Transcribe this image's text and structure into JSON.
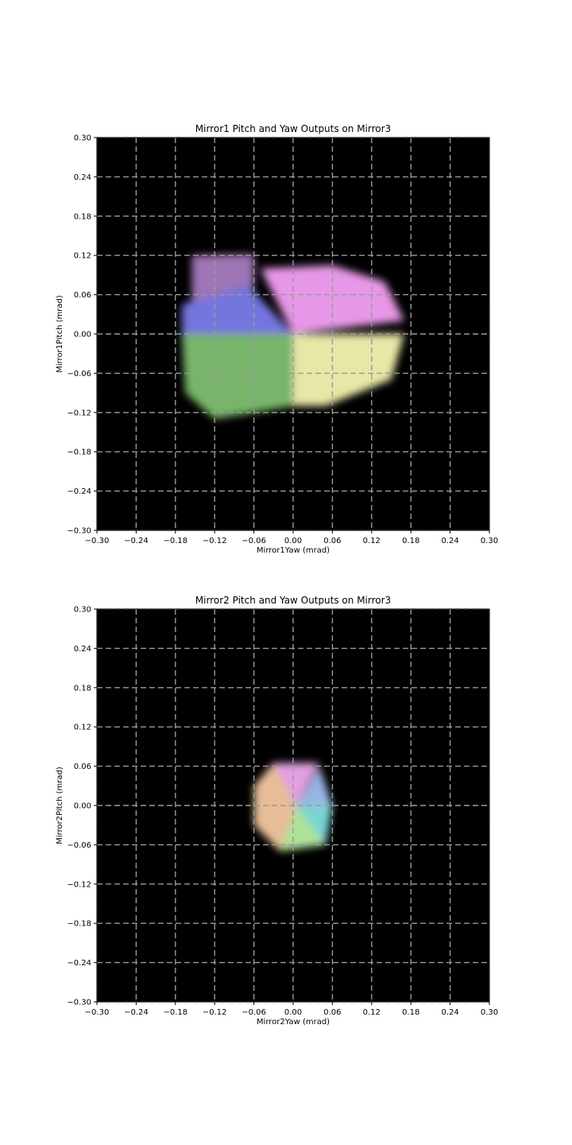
{
  "chart_data": [
    {
      "type": "heatmap",
      "title": "Mirror1 Pitch and Yaw Outputs on Mirror3",
      "xlabel": "Mirror1Yaw (mrad)",
      "ylabel": "Mirror1Pitch (mrad)",
      "xlim": [
        -0.3,
        0.3
      ],
      "ylim": [
        -0.3,
        0.3
      ],
      "xticks": [
        "−0.30",
        "−0.24",
        "−0.18",
        "−0.12",
        "−0.06",
        "0.00",
        "0.06",
        "0.12",
        "0.18",
        "0.24",
        "0.30"
      ],
      "yticks": [
        "0.30",
        "0.24",
        "0.18",
        "0.12",
        "0.06",
        "0.00",
        "−0.06",
        "−0.12",
        "−0.18",
        "−0.24",
        "−0.30"
      ],
      "grid": true,
      "background": "#000000",
      "colormap": "hue by angle around origin",
      "regions": [
        {
          "hue": "purple",
          "color": "#a77bbf",
          "points": [
            [
              -0.155,
              0.12
            ],
            [
              -0.06,
              0.122
            ],
            [
              -0.06,
              0.07
            ],
            [
              -0.155,
              0.05
            ]
          ]
        },
        {
          "hue": "blue",
          "color": "#7b7bea",
          "points": [
            [
              -0.17,
              0.045
            ],
            [
              -0.07,
              0.075
            ],
            [
              0.0,
              0.0
            ],
            [
              -0.17,
              -0.01
            ]
          ]
        },
        {
          "hue": "green",
          "color": "#7fbf6f",
          "points": [
            [
              -0.17,
              0.0
            ],
            [
              0.0,
              0.0
            ],
            [
              0.0,
              -0.11
            ],
            [
              -0.12,
              -0.13
            ],
            [
              -0.165,
              -0.09
            ]
          ]
        },
        {
          "hue": "pink",
          "color": "#f4a0f4",
          "points": [
            [
              -0.05,
              0.1
            ],
            [
              0.06,
              0.105
            ],
            [
              0.14,
              0.08
            ],
            [
              0.17,
              0.02
            ],
            [
              0.0,
              0.0
            ]
          ]
        },
        {
          "hue": "yellow",
          "color": "#f4f4b0",
          "points": [
            [
              0.0,
              0.0
            ],
            [
              0.17,
              0.0
            ],
            [
              0.15,
              -0.07
            ],
            [
              0.05,
              -0.11
            ],
            [
              0.0,
              -0.11
            ]
          ]
        }
      ]
    },
    {
      "type": "heatmap",
      "title": "Mirror2 Pitch and Yaw Outputs on Mirror3",
      "xlabel": "Mirror2Yaw (mrad)",
      "ylabel": "Mirror2Pitch (mrad)",
      "xlim": [
        -0.3,
        0.3
      ],
      "ylim": [
        -0.3,
        0.3
      ],
      "xticks": [
        "−0.30",
        "−0.24",
        "−0.18",
        "−0.12",
        "−0.06",
        "0.00",
        "0.06",
        "0.12",
        "0.18",
        "0.24",
        "0.30"
      ],
      "yticks": [
        "0.30",
        "0.24",
        "0.18",
        "0.12",
        "0.06",
        "0.00",
        "−0.06",
        "−0.12",
        "−0.18",
        "−0.24",
        "−0.30"
      ],
      "grid": true,
      "background": "#000000",
      "colormap": "hue by angle around origin",
      "regions": [
        {
          "hue": "pink",
          "color": "#f0a8f0",
          "points": [
            [
              -0.03,
              0.065
            ],
            [
              0.04,
              0.065
            ],
            [
              0.005,
              0.0
            ]
          ]
        },
        {
          "hue": "blue",
          "color": "#a0c0f0",
          "points": [
            [
              0.04,
              0.06
            ],
            [
              0.06,
              0.0
            ],
            [
              0.005,
              0.0
            ]
          ]
        },
        {
          "hue": "cyan",
          "color": "#80e0e0",
          "points": [
            [
              0.06,
              0.0
            ],
            [
              0.05,
              -0.06
            ],
            [
              0.005,
              0.0
            ]
          ]
        },
        {
          "hue": "green",
          "color": "#b8f0a0",
          "points": [
            [
              0.05,
              -0.06
            ],
            [
              -0.02,
              -0.07
            ],
            [
              0.005,
              0.0
            ]
          ]
        },
        {
          "hue": "orange",
          "color": "#f4c8a0",
          "points": [
            [
              -0.02,
              -0.07
            ],
            [
              -0.06,
              -0.03
            ],
            [
              -0.06,
              0.03
            ],
            [
              -0.03,
              0.065
            ],
            [
              0.005,
              0.0
            ]
          ]
        }
      ]
    }
  ]
}
